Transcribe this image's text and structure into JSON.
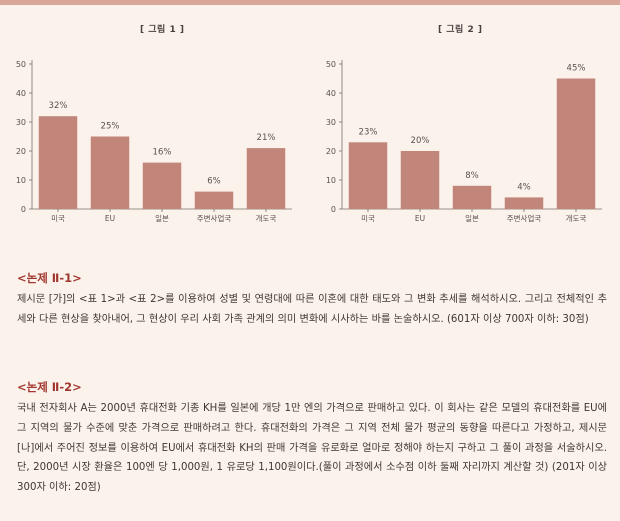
{
  "figures": [
    {
      "title": "[ 그림 1 ]"
    },
    {
      "title": "[ 그림 2 ]"
    }
  ],
  "chart_data": [
    {
      "type": "bar",
      "title": "[ 그림 1 ]",
      "categories": [
        "미국",
        "EU",
        "일본",
        "주변사업국",
        "개도국"
      ],
      "values": [
        32,
        25,
        16,
        6,
        21
      ],
      "value_labels": [
        "32%",
        "25%",
        "16%",
        "6%",
        "21%"
      ],
      "ylim": [
        0,
        50
      ],
      "yticks": [
        0,
        10,
        20,
        30,
        40,
        50
      ],
      "bar_color": "#c1857a",
      "grid": false
    },
    {
      "type": "bar",
      "title": "[ 그림 2 ]",
      "categories": [
        "미국",
        "EU",
        "일본",
        "주변사업국",
        "개도국"
      ],
      "values": [
        23,
        20,
        8,
        4,
        45
      ],
      "value_labels": [
        "23%",
        "20%",
        "8%",
        "4%",
        "45%"
      ],
      "ylim": [
        0,
        50
      ],
      "yticks": [
        0,
        10,
        20,
        30,
        40,
        50
      ],
      "bar_color": "#c1857a",
      "grid": false
    }
  ],
  "sections": [
    {
      "heading": "<논제 Ⅱ-1>",
      "body": "제시문 [가]의 <표 1>과 <표 2>를 이용하여 성별 및 연령대에 따른 이혼에 대한 태도와 그 변화 추세를 해석하시오. 그리고 전체적인 추세와 다른 현상을 찾아내어, 그 현상이 우리 사회 가족 관계의 의미 변화에 시사하는 바를 논술하시오. (601자 이상 700자 이하: 30점)"
    },
    {
      "heading": "<논제 Ⅱ-2>",
      "body": "국내 전자회사 A는 2000년 휴대전화 기종 KH를 일본에 개당 1만 엔의 가격으로 판매하고 있다. 이 회사는 같은 모델의 휴대전화를 EU에 그 지역의 물가 수준에 맞춘 가격으로 판매하려고 한다. 휴대전화의 가격은 그 지역 전체 물가 평균의 동향을 따른다고 가정하고, 제시문 [나]에서 주어진 정보를 이용하여 EU에서 휴대전화 KH의 판매 가격을 유로화로 얼마로 정해야 하는지 구하고 그 풀이 과정을 서술하시오. 단, 2000년 시장 환율은 100엔 당 1,000원, 1 유로당 1,100원이다.(풀이 과정에서 소수점 이하 둘째 자리까지 계산할 것) (201자 이상 300자 이하: 20점)"
    }
  ],
  "colors": {
    "accent": "#a0362f",
    "bar": "#c1857a",
    "top_bar": "#d9a79a",
    "background": "#fbf3eb"
  }
}
